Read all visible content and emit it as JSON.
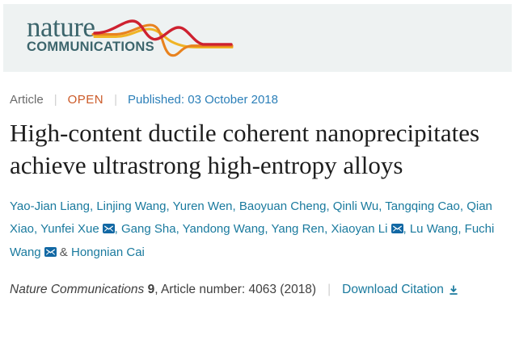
{
  "header": {
    "logo": {
      "line1": "nature",
      "line2": "COMMUNICATIONS"
    },
    "colors": {
      "band_bg": "#eef2f2",
      "logo_text": "#3c656c",
      "wave_red": "#ce2130",
      "wave_orange": "#e8821e",
      "wave_yellow": "#f0b425"
    }
  },
  "meta": {
    "type_label": "Article",
    "access_label": "OPEN",
    "published_label": "Published: 03 October 2018",
    "separator": "|"
  },
  "article": {
    "title": "High-content ductile coherent nanoprecipitates achieve ultrastrong high-entropy alloys",
    "authors": [
      {
        "name": "Yao-Jian Liang",
        "email": false
      },
      {
        "name": "Linjing Wang",
        "email": false
      },
      {
        "name": "Yuren Wen",
        "email": false
      },
      {
        "name": "Baoyuan Cheng",
        "email": false
      },
      {
        "name": "Qinli Wu",
        "email": false
      },
      {
        "name": "Tangqing Cao",
        "email": false
      },
      {
        "name": "Qian Xiao",
        "email": false
      },
      {
        "name": "Yunfei Xue",
        "email": true
      },
      {
        "name": "Gang Sha",
        "email": false
      },
      {
        "name": "Yandong Wang",
        "email": false
      },
      {
        "name": "Yang Ren",
        "email": false
      },
      {
        "name": "Xiaoyan Li",
        "email": true
      },
      {
        "name": "Lu Wang",
        "email": false
      },
      {
        "name": "Fuchi Wang",
        "email": true
      },
      {
        "name": "Hongnian Cai",
        "email": false
      }
    ],
    "author_separator": ", ",
    "last_author_separator": " & "
  },
  "citation": {
    "journal": "Nature Communications",
    "volume": "9",
    "article_number_text": ", Article number: 4063 (2018)",
    "separator": "|",
    "download_label": "Download Citation"
  },
  "icons": {
    "email": "envelope-icon",
    "download": "download-arrow-icon",
    "email_color": "#1268a4",
    "link_color": "#1a7a9e"
  }
}
